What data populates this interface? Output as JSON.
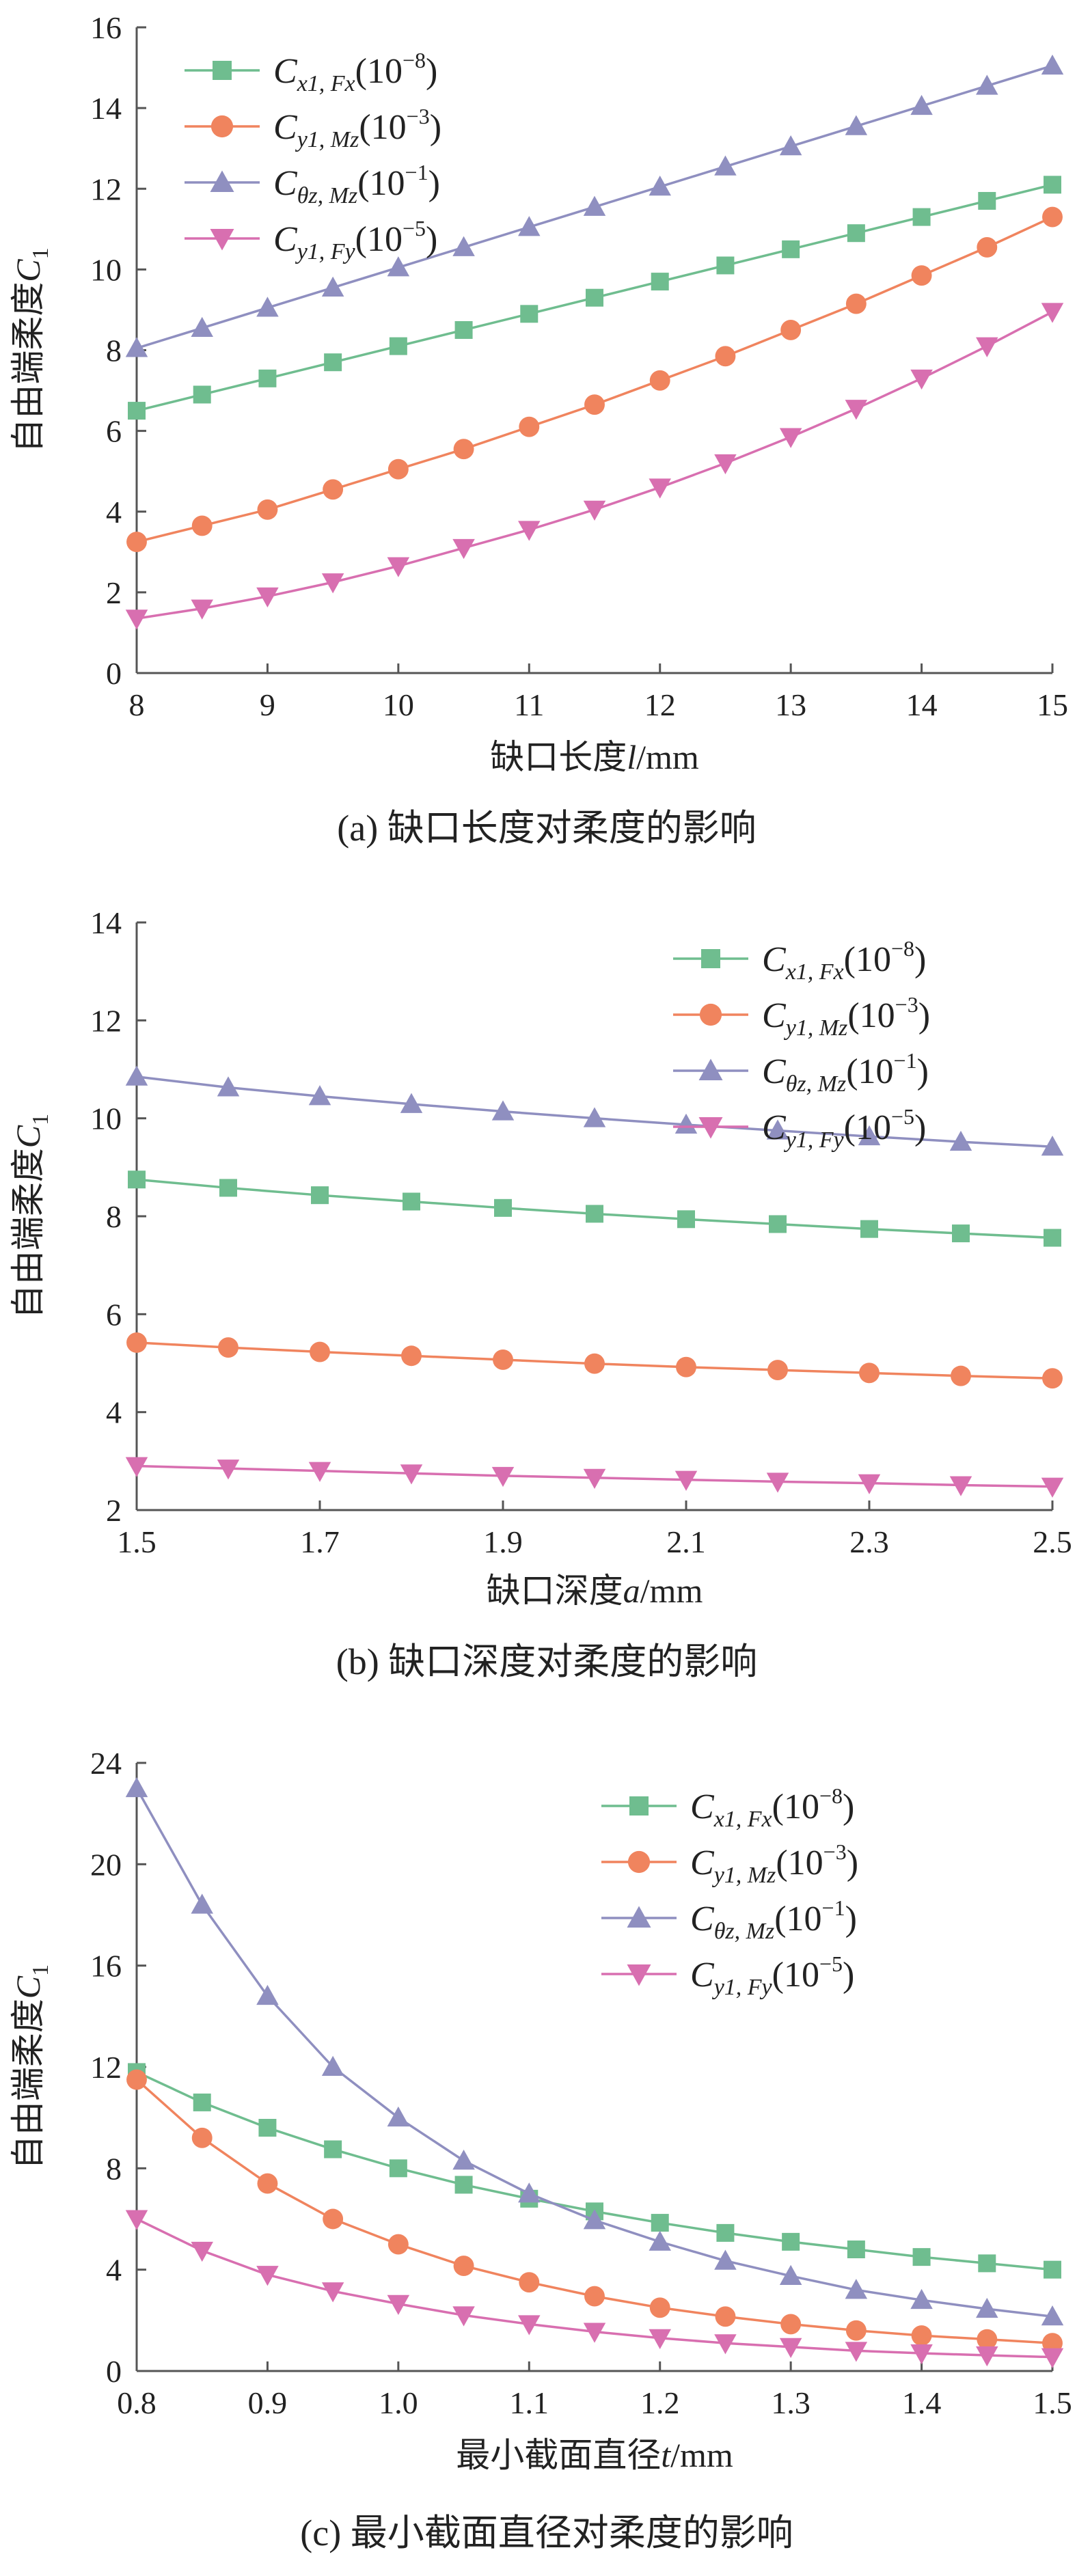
{
  "figure": {
    "captions": [
      "(a)  缺口长度对柔度的影响",
      "(b)  缺口深度对柔度的影响",
      "(c)  最小截面直径对柔度的影响"
    ]
  },
  "series_style": [
    {
      "color": "#6fbd8f",
      "marker": "square"
    },
    {
      "color": "#f0845e",
      "marker": "circle"
    },
    {
      "color": "#8f8fc0",
      "marker": "triangle-up"
    },
    {
      "color": "#d86fb0",
      "marker": "triangle-down"
    }
  ],
  "legend": [
    {
      "base": "C",
      "sub": "x1, Fx",
      "exp": "(10",
      "sup": "−8",
      "close": ")"
    },
    {
      "base": "C",
      "sub": "y1, Mz",
      "exp": "(10",
      "sup": "−3",
      "close": ")"
    },
    {
      "base": "C",
      "sub": "θz, Mz",
      "exp": "(10",
      "sup": "−1",
      "close": ")"
    },
    {
      "base": "C",
      "sub": "y1, Fy",
      "exp": "(10",
      "sup": "−5",
      "close": ")"
    }
  ],
  "chart_data": [
    {
      "type": "line",
      "caption": "(a)  缺口长度对柔度的影响",
      "xlabel_prefix": "缺口长度",
      "xlabel_var": "l",
      "xlabel_unit": "/mm",
      "ylabel_prefix": "自由端柔度",
      "ylabel_var": "C",
      "ylabel_sub": "1",
      "xlim": [
        8,
        15
      ],
      "ylim": [
        0,
        16
      ],
      "xticks": [
        "8",
        "9",
        "10",
        "11",
        "12",
        "13",
        "14",
        "15"
      ],
      "yticks": [
        "0",
        "2",
        "4",
        "6",
        "8",
        "10",
        "12",
        "14",
        "16"
      ],
      "x": [
        8,
        8.5,
        9,
        9.5,
        10,
        10.5,
        11,
        11.5,
        12,
        12.5,
        13,
        13.5,
        14,
        14.5,
        15
      ],
      "legend_position": "top-left",
      "series": [
        {
          "name": "Cx1,Fx(10^-8)",
          "values": [
            6.5,
            6.9,
            7.3,
            7.7,
            8.1,
            8.5,
            8.9,
            9.3,
            9.7,
            10.1,
            10.5,
            10.9,
            11.3,
            11.7,
            12.1
          ]
        },
        {
          "name": "Cy1,Mz(10^-3)",
          "values": [
            3.25,
            3.65,
            4.05,
            4.55,
            5.05,
            5.55,
            6.1,
            6.65,
            7.25,
            7.85,
            8.5,
            9.15,
            9.85,
            10.55,
            11.3
          ]
        },
        {
          "name": "Cθz,Mz(10^-1)",
          "values": [
            8.05,
            8.55,
            9.05,
            9.55,
            10.05,
            10.55,
            11.05,
            11.55,
            12.05,
            12.55,
            13.05,
            13.55,
            14.05,
            14.55,
            15.05
          ]
        },
        {
          "name": "Cy1,Fy(10^-5)",
          "values": [
            1.35,
            1.6,
            1.9,
            2.25,
            2.65,
            3.1,
            3.55,
            4.05,
            4.6,
            5.2,
            5.85,
            6.55,
            7.3,
            8.1,
            8.95
          ]
        }
      ]
    },
    {
      "type": "line",
      "caption": "(b)  缺口深度对柔度的影响",
      "xlabel_prefix": "缺口深度",
      "xlabel_var": "a",
      "xlabel_unit": "/mm",
      "ylabel_prefix": "自由端柔度",
      "ylabel_var": "C",
      "ylabel_sub": "1",
      "xlim": [
        1.5,
        2.5
      ],
      "ylim": [
        2,
        14
      ],
      "xticks": [
        "1.5",
        "1.7",
        "1.9",
        "2.1",
        "2.3",
        "2.5"
      ],
      "yticks": [
        "2",
        "4",
        "6",
        "8",
        "10",
        "12",
        "14"
      ],
      "x": [
        1.5,
        1.6,
        1.7,
        1.8,
        1.9,
        2.0,
        2.1,
        2.2,
        2.3,
        2.4,
        2.5
      ],
      "legend_position": "top-right",
      "series": [
        {
          "name": "Cx1,Fx(10^-8)",
          "values": [
            8.75,
            8.58,
            8.43,
            8.3,
            8.17,
            8.05,
            7.94,
            7.84,
            7.74,
            7.65,
            7.56
          ]
        },
        {
          "name": "Cy1,Mz(10^-3)",
          "values": [
            5.42,
            5.32,
            5.23,
            5.15,
            5.07,
            4.99,
            4.92,
            4.86,
            4.8,
            4.74,
            4.69
          ]
        },
        {
          "name": "Cθz,Mz(10^-1)",
          "values": [
            10.85,
            10.63,
            10.45,
            10.29,
            10.14,
            10.0,
            9.87,
            9.75,
            9.63,
            9.52,
            9.42
          ]
        },
        {
          "name": "Cy1,Fy(10^-5)",
          "values": [
            2.9,
            2.85,
            2.8,
            2.75,
            2.7,
            2.66,
            2.62,
            2.58,
            2.55,
            2.51,
            2.48
          ]
        }
      ]
    },
    {
      "type": "line",
      "caption": "(c)  最小截面直径对柔度的影响",
      "xlabel_prefix": "最小截面直径",
      "xlabel_var": "t",
      "xlabel_unit": "/mm",
      "ylabel_prefix": "自由端柔度",
      "ylabel_var": "C",
      "ylabel_sub": "1",
      "xlim": [
        0.8,
        1.5
      ],
      "ylim": [
        0,
        24
      ],
      "xticks": [
        "0.8",
        "0.9",
        "1.0",
        "1.1",
        "1.2",
        "1.3",
        "1.4",
        "1.5"
      ],
      "yticks": [
        "0",
        "4",
        "8",
        "12",
        "16",
        "20",
        "24"
      ],
      "x": [
        0.8,
        0.85,
        0.9,
        0.95,
        1.0,
        1.05,
        1.1,
        1.15,
        1.2,
        1.25,
        1.3,
        1.35,
        1.4,
        1.45,
        1.5
      ],
      "legend_position": "top-right",
      "series": [
        {
          "name": "Cx1,Fx(10^-8)",
          "values": [
            11.8,
            10.6,
            9.6,
            8.75,
            8.0,
            7.35,
            6.8,
            6.3,
            5.85,
            5.45,
            5.1,
            4.8,
            4.5,
            4.25,
            4.0
          ]
        },
        {
          "name": "Cy1,Mz(10^-3)",
          "values": [
            11.5,
            9.2,
            7.4,
            6.0,
            5.0,
            4.15,
            3.5,
            2.95,
            2.5,
            2.15,
            1.85,
            1.6,
            1.4,
            1.25,
            1.1
          ]
        },
        {
          "name": "Cθz,Mz(10^-1)",
          "values": [
            23.0,
            18.4,
            14.8,
            12.0,
            10.0,
            8.3,
            7.0,
            5.95,
            5.1,
            4.35,
            3.75,
            3.2,
            2.8,
            2.45,
            2.15
          ]
        },
        {
          "name": "Cy1,Fy(10^-5)",
          "values": [
            6.0,
            4.75,
            3.8,
            3.15,
            2.65,
            2.2,
            1.85,
            1.55,
            1.3,
            1.1,
            0.95,
            0.8,
            0.7,
            0.62,
            0.55
          ]
        }
      ]
    }
  ]
}
